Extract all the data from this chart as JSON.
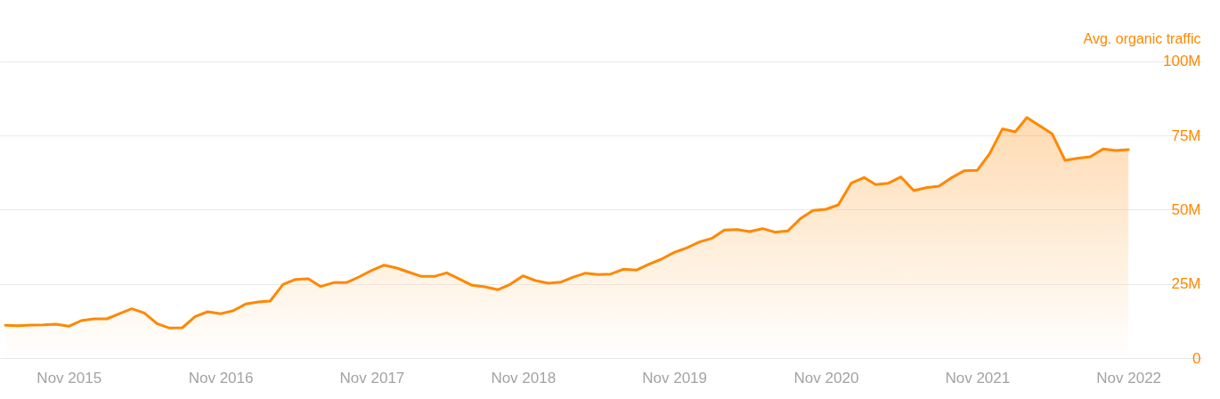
{
  "chart_data": {
    "type": "area",
    "ylabel": "Avg. organic traffic",
    "x": [
      "2015-06",
      "2015-07",
      "2015-08",
      "2015-09",
      "2015-10",
      "2015-11",
      "2015-12",
      "2016-01",
      "2016-02",
      "2016-03",
      "2016-04",
      "2016-05",
      "2016-06",
      "2016-07",
      "2016-08",
      "2016-09",
      "2016-10",
      "2016-11",
      "2016-12",
      "2017-01",
      "2017-02",
      "2017-03",
      "2017-04",
      "2017-05",
      "2017-06",
      "2017-07",
      "2017-08",
      "2017-09",
      "2017-10",
      "2017-11",
      "2017-12",
      "2018-01",
      "2018-02",
      "2018-03",
      "2018-04",
      "2018-05",
      "2018-06",
      "2018-07",
      "2018-08",
      "2018-09",
      "2018-10",
      "2018-11",
      "2018-12",
      "2019-01",
      "2019-02",
      "2019-03",
      "2019-04",
      "2019-05",
      "2019-06",
      "2019-07",
      "2019-08",
      "2019-09",
      "2019-10",
      "2019-11",
      "2019-12",
      "2020-01",
      "2020-02",
      "2020-03",
      "2020-04",
      "2020-05",
      "2020-06",
      "2020-07",
      "2020-08",
      "2020-09",
      "2020-10",
      "2020-11",
      "2020-12",
      "2021-01",
      "2021-02",
      "2021-03",
      "2021-04",
      "2021-05",
      "2021-06",
      "2021-07",
      "2021-08",
      "2021-09",
      "2021-10",
      "2021-11",
      "2021-12",
      "2022-01",
      "2022-02",
      "2022-03",
      "2022-04",
      "2022-05",
      "2022-06",
      "2022-07",
      "2022-08",
      "2022-09",
      "2022-10",
      "2022-11"
    ],
    "series": [
      {
        "color": "#ff8800",
        "values": [
          11.0,
          10.9,
          11.1,
          11.2,
          11.4,
          10.7,
          12.6,
          13.2,
          13.2,
          14.9,
          16.6,
          15.2,
          11.6,
          10.1,
          10.2,
          14.0,
          15.6,
          14.9,
          15.9,
          18.2,
          18.9,
          19.2,
          24.8,
          26.5,
          26.7,
          24.1,
          25.4,
          25.4,
          27.3,
          29.5,
          31.3,
          30.3,
          28.8,
          27.5,
          27.5,
          28.7,
          26.6,
          24.5,
          24.0,
          23.0,
          24.8,
          27.7,
          26.1,
          25.2,
          25.6,
          27.2,
          28.6,
          28.1,
          28.3,
          29.9,
          29.6,
          31.6,
          33.3,
          35.6,
          37.1,
          39.1,
          40.4,
          43.1,
          43.3,
          42.6,
          43.6,
          42.4,
          42.8,
          47.0,
          49.7,
          50.1,
          51.6,
          58.9,
          60.8,
          58.4,
          58.9,
          61.0,
          56.4,
          57.4,
          57.9,
          60.8,
          63.1,
          63.2,
          68.8,
          77.2,
          76.2,
          81.0,
          78.2,
          75.5,
          66.6,
          67.3,
          67.8,
          70.4,
          69.9,
          70.2
        ]
      }
    ],
    "xlim": [
      "2015-05-19",
      "2023-04-28"
    ],
    "xticks": [
      {
        "value": "2015-11",
        "label": "Nov 2015"
      },
      {
        "value": "2016-11",
        "label": "Nov 2016"
      },
      {
        "value": "2017-11",
        "label": "Nov 2017"
      },
      {
        "value": "2018-11",
        "label": "Nov 2018"
      },
      {
        "value": "2019-11",
        "label": "Nov 2019"
      },
      {
        "value": "2020-11",
        "label": "Nov 2020"
      },
      {
        "value": "2021-11",
        "label": "Nov 2021"
      },
      {
        "value": "2022-11",
        "label": "Nov 2022"
      }
    ],
    "ylim": [
      0,
      120
    ],
    "yticks": [
      0,
      {
        "value": 25,
        "label": "25M"
      },
      {
        "value": 50,
        "label": "50M"
      },
      {
        "value": 75,
        "label": "75M"
      },
      {
        "value": 100,
        "label": "100M"
      }
    ],
    "grid": "y"
  }
}
